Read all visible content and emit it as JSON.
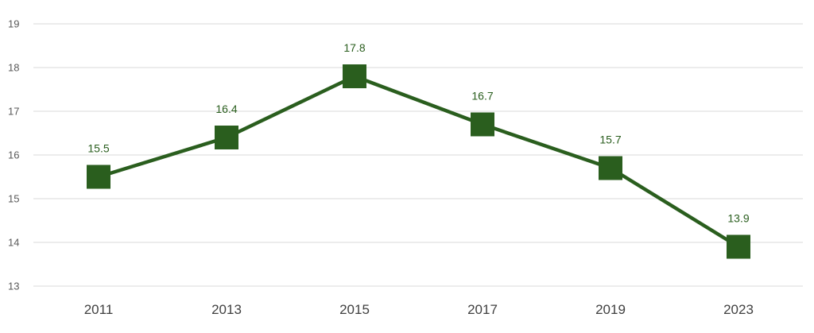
{
  "chart_data": {
    "type": "line",
    "categories": [
      "2011",
      "2013",
      "2015",
      "2017",
      "2019",
      "2023"
    ],
    "series": [
      {
        "values": [
          15.5,
          16.4,
          17.8,
          16.7,
          15.7,
          13.9
        ],
        "data_labels": [
          "15.5",
          "16.4",
          "17.8",
          "16.7",
          "15.7",
          "13.9"
        ],
        "color": "#2a5e1e",
        "marker": "square"
      }
    ],
    "y_ticks": [
      "19",
      "18",
      "17",
      "16",
      "15",
      "14",
      "13"
    ],
    "ylim": [
      13,
      19
    ],
    "grid": true,
    "legend": "none",
    "title": "",
    "xlabel": "",
    "ylabel": ""
  }
}
